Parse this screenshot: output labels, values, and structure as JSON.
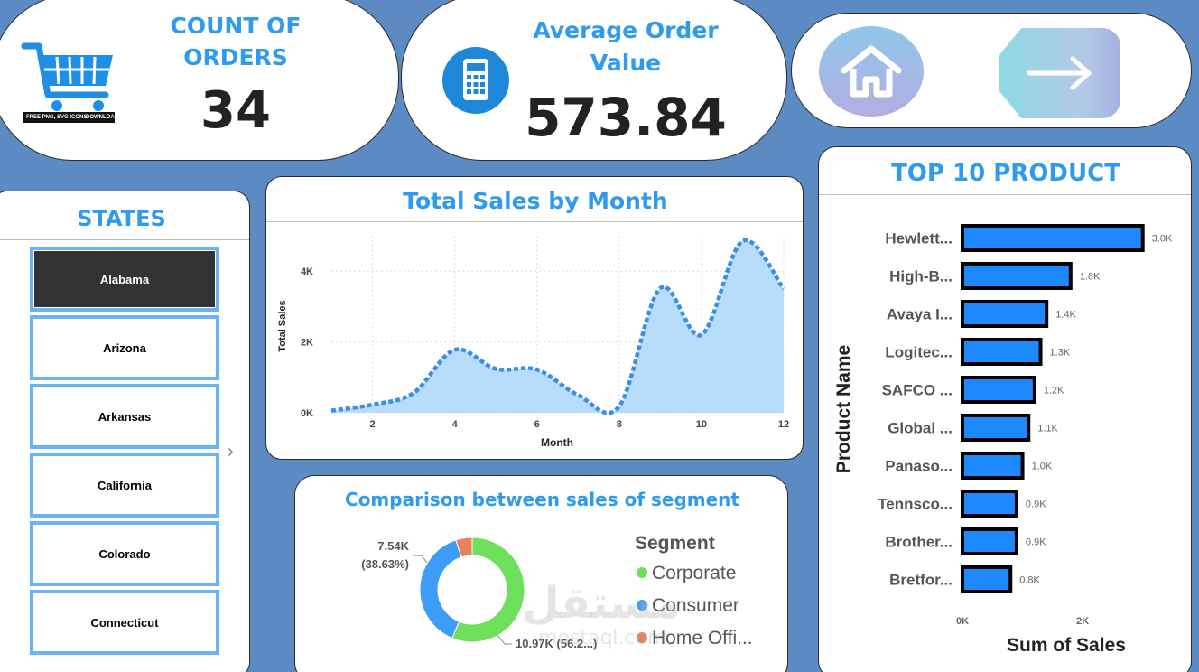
{
  "kpi_orders": {
    "title_line1": "COUNT OF",
    "title_line2": "ORDERS",
    "value": "34",
    "icon_caption_left": "FREE PNG, SVG ICONS",
    "icon_caption_right": "DOWNLOAD ➜"
  },
  "kpi_aov": {
    "title_line1": "Average Order",
    "title_line2": "Value",
    "value": "573.84"
  },
  "nav": {
    "home_icon": "home-icon",
    "next_icon": "arrow-right-icon"
  },
  "states": {
    "title": "STATES",
    "items": [
      {
        "label": "Alabama",
        "selected": true
      },
      {
        "label": "Arizona",
        "selected": false
      },
      {
        "label": "Arkansas",
        "selected": false
      },
      {
        "label": "California",
        "selected": false
      },
      {
        "label": "Colorado",
        "selected": false
      },
      {
        "label": "Connecticut",
        "selected": false
      }
    ],
    "scroll_icon": "chevron-right-icon"
  },
  "colors": {
    "accent": "#2f9bf0",
    "background": "#5b8bc2",
    "bar_fill": "#1e88ff",
    "area_fill": "#b8dcfb",
    "line": "#3a8ee8",
    "corporate": "#6ee05c",
    "consumer": "#3d9cf5",
    "home_office": "#e8825c"
  },
  "chart_data": [
    {
      "id": "sales_by_month",
      "type": "area",
      "title": "Total Sales by Month",
      "xlabel": "Month",
      "ylabel": "Total Sales",
      "x": [
        1,
        2,
        3,
        4,
        5,
        6,
        7,
        8,
        9,
        10,
        11,
        12
      ],
      "values": [
        60,
        230,
        560,
        1780,
        1240,
        1220,
        500,
        180,
        3520,
        2200,
        4850,
        3500
      ],
      "x_ticks": [
        "2",
        "4",
        "6",
        "8",
        "10",
        "12"
      ],
      "y_ticks": [
        "0K",
        "2K",
        "4K"
      ],
      "ylim": [
        0,
        5000
      ],
      "grid": true
    },
    {
      "id": "segment_sales",
      "type": "pie",
      "title": "Comparison between sales of segment",
      "legend_title": "Segment",
      "legend_placement": "right",
      "categories": [
        "Corporate",
        "Consumer",
        "Home Offi..."
      ],
      "values": [
        10970,
        7540,
        990
      ],
      "data_labels": [
        {
          "value": "10.97K (56.2...)",
          "segment": "Corporate"
        },
        {
          "value": "7.54K",
          "pct": "(38.63%)",
          "segment": "Consumer"
        }
      ]
    },
    {
      "id": "top10_products",
      "type": "bar",
      "title": "TOP 10 PRODUCT",
      "xlabel": "Sum of Sales",
      "ylabel": "Product Name",
      "categories": [
        "Hewlett...",
        "High-B...",
        "Avaya I...",
        "Logitec...",
        "SAFCO ...",
        "Global ...",
        "Panaso...",
        "Tennsco...",
        "Brother...",
        "Bretfor..."
      ],
      "values": [
        3000,
        1800,
        1400,
        1300,
        1200,
        1100,
        1000,
        900,
        900,
        800
      ],
      "value_labels": [
        "3.0K",
        "1.8K",
        "1.4K",
        "1.3K",
        "1.2K",
        "1.1K",
        "1.0K",
        "0.9K",
        "0.9K",
        "0.8K"
      ],
      "x_ticks": [
        "0K",
        "2K"
      ],
      "xlim": [
        0,
        3200
      ]
    }
  ],
  "watermark": {
    "text": "مستقل",
    "sub": "mostaql.com"
  }
}
